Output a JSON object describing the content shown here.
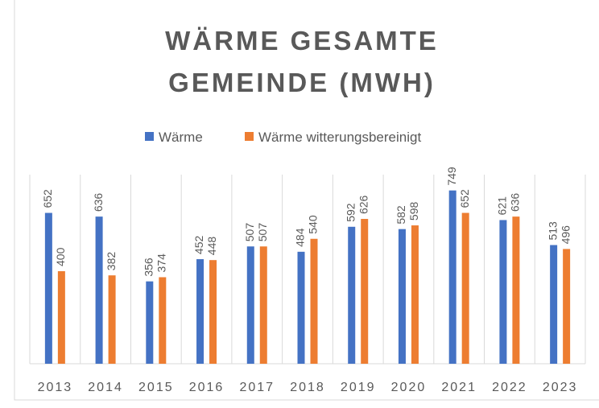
{
  "chart_data": {
    "type": "bar",
    "title": [
      "WÄRME GESAMTE",
      "GEMEINDE (MWH)"
    ],
    "categories": [
      "2013",
      "2014",
      "2015",
      "2016",
      "2017",
      "2018",
      "2019",
      "2020",
      "2021",
      "2022",
      "2023"
    ],
    "series": [
      {
        "name": "Wärme",
        "color": "#4472c4",
        "values": [
          652,
          636,
          356,
          452,
          507,
          484,
          592,
          582,
          749,
          621,
          513
        ]
      },
      {
        "name": "Wärme witterungsbereinigt",
        "color": "#ed7d31",
        "values": [
          400,
          382,
          374,
          448,
          507,
          540,
          626,
          598,
          652,
          636,
          496
        ]
      }
    ],
    "ylim": [
      0,
      800
    ],
    "grid": true,
    "legend": "top"
  }
}
